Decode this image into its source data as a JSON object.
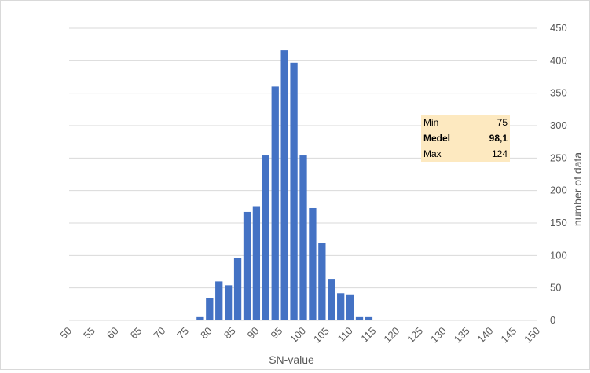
{
  "chart_data": {
    "type": "bar",
    "xlabel": "SN-value",
    "ylabel": "number of data",
    "ylim": [
      0,
      450
    ],
    "yticks": [
      0,
      50,
      100,
      150,
      200,
      250,
      300,
      350,
      400,
      450
    ],
    "grid": true,
    "y_axis_position": "right",
    "bar_color": "#4472c4",
    "categories": [
      "50",
      "55",
      "60",
      "65",
      "70",
      "75",
      "80",
      "85",
      "90",
      "95",
      "100",
      "105",
      "110",
      "115",
      "120",
      "125",
      "130",
      "135",
      "140",
      "145",
      "150"
    ],
    "x": [
      50,
      51,
      52,
      53,
      54,
      55,
      56,
      57,
      58,
      59,
      60,
      61,
      62,
      63,
      64,
      65,
      66,
      67,
      68,
      69,
      70,
      71,
      72,
      73,
      74,
      75,
      76,
      77,
      78,
      79,
      80,
      81,
      82,
      83,
      84,
      85,
      86,
      87,
      88,
      89,
      90,
      91,
      92,
      93,
      94,
      95,
      96,
      97,
      98,
      99,
      100,
      101,
      102,
      103,
      104,
      105,
      106,
      107,
      108,
      109,
      110,
      111,
      112,
      113,
      114,
      115,
      116,
      117,
      118,
      119,
      120,
      121,
      122,
      123,
      124,
      125,
      126,
      127,
      128,
      129,
      130,
      131,
      132,
      133,
      134,
      135,
      136,
      137,
      138,
      139,
      140,
      141,
      142,
      143,
      144,
      145,
      146,
      147,
      148,
      149,
      150
    ],
    "values": [
      0,
      0,
      0,
      0,
      0,
      0,
      0,
      0,
      0,
      0,
      0,
      0,
      0,
      0,
      0,
      0,
      0,
      0,
      0,
      0,
      0,
      0,
      0,
      0,
      0,
      0,
      0,
      0,
      0,
      0,
      0,
      0,
      0,
      0,
      0,
      0,
      0,
      0,
      0,
      0,
      0,
      0,
      0,
      0,
      0,
      0,
      0,
      0,
      0,
      0,
      0,
      0,
      0,
      0,
      0,
      0,
      0,
      0,
      0,
      0,
      0,
      0,
      0,
      0,
      0,
      0,
      0,
      0,
      0,
      0,
      0,
      0,
      0,
      0,
      0,
      0,
      0,
      0,
      0,
      0,
      0,
      0,
      0,
      0,
      0,
      0,
      0,
      0,
      0,
      0,
      0,
      0,
      0,
      0,
      0,
      0,
      0,
      0,
      0,
      0,
      0
    ],
    "bins": [
      {
        "x": 78,
        "value": 5
      },
      {
        "x": 80,
        "value": 34
      },
      {
        "x": 82,
        "value": 60
      },
      {
        "x": 84,
        "value": 54
      },
      {
        "x": 86,
        "value": 96
      },
      {
        "x": 88,
        "value": 167
      },
      {
        "x": 90,
        "value": 176
      },
      {
        "x": 92,
        "value": 254
      },
      {
        "x": 94,
        "value": 360
      },
      {
        "x": 96,
        "value": 416
      },
      {
        "x": 98,
        "value": 397
      },
      {
        "x": 100,
        "value": 254
      },
      {
        "x": 102,
        "value": 173
      },
      {
        "x": 104,
        "value": 119
      },
      {
        "x": 106,
        "value": 64
      },
      {
        "x": 108,
        "value": 42
      },
      {
        "x": 110,
        "value": 39
      },
      {
        "x": 112,
        "value": 5
      },
      {
        "x": 114,
        "value": 5
      }
    ]
  },
  "stats": {
    "min_label": "Min",
    "min_value": "75",
    "mean_label": "Medel",
    "mean_value": "98,1",
    "max_label": "Max",
    "max_value": "124"
  }
}
